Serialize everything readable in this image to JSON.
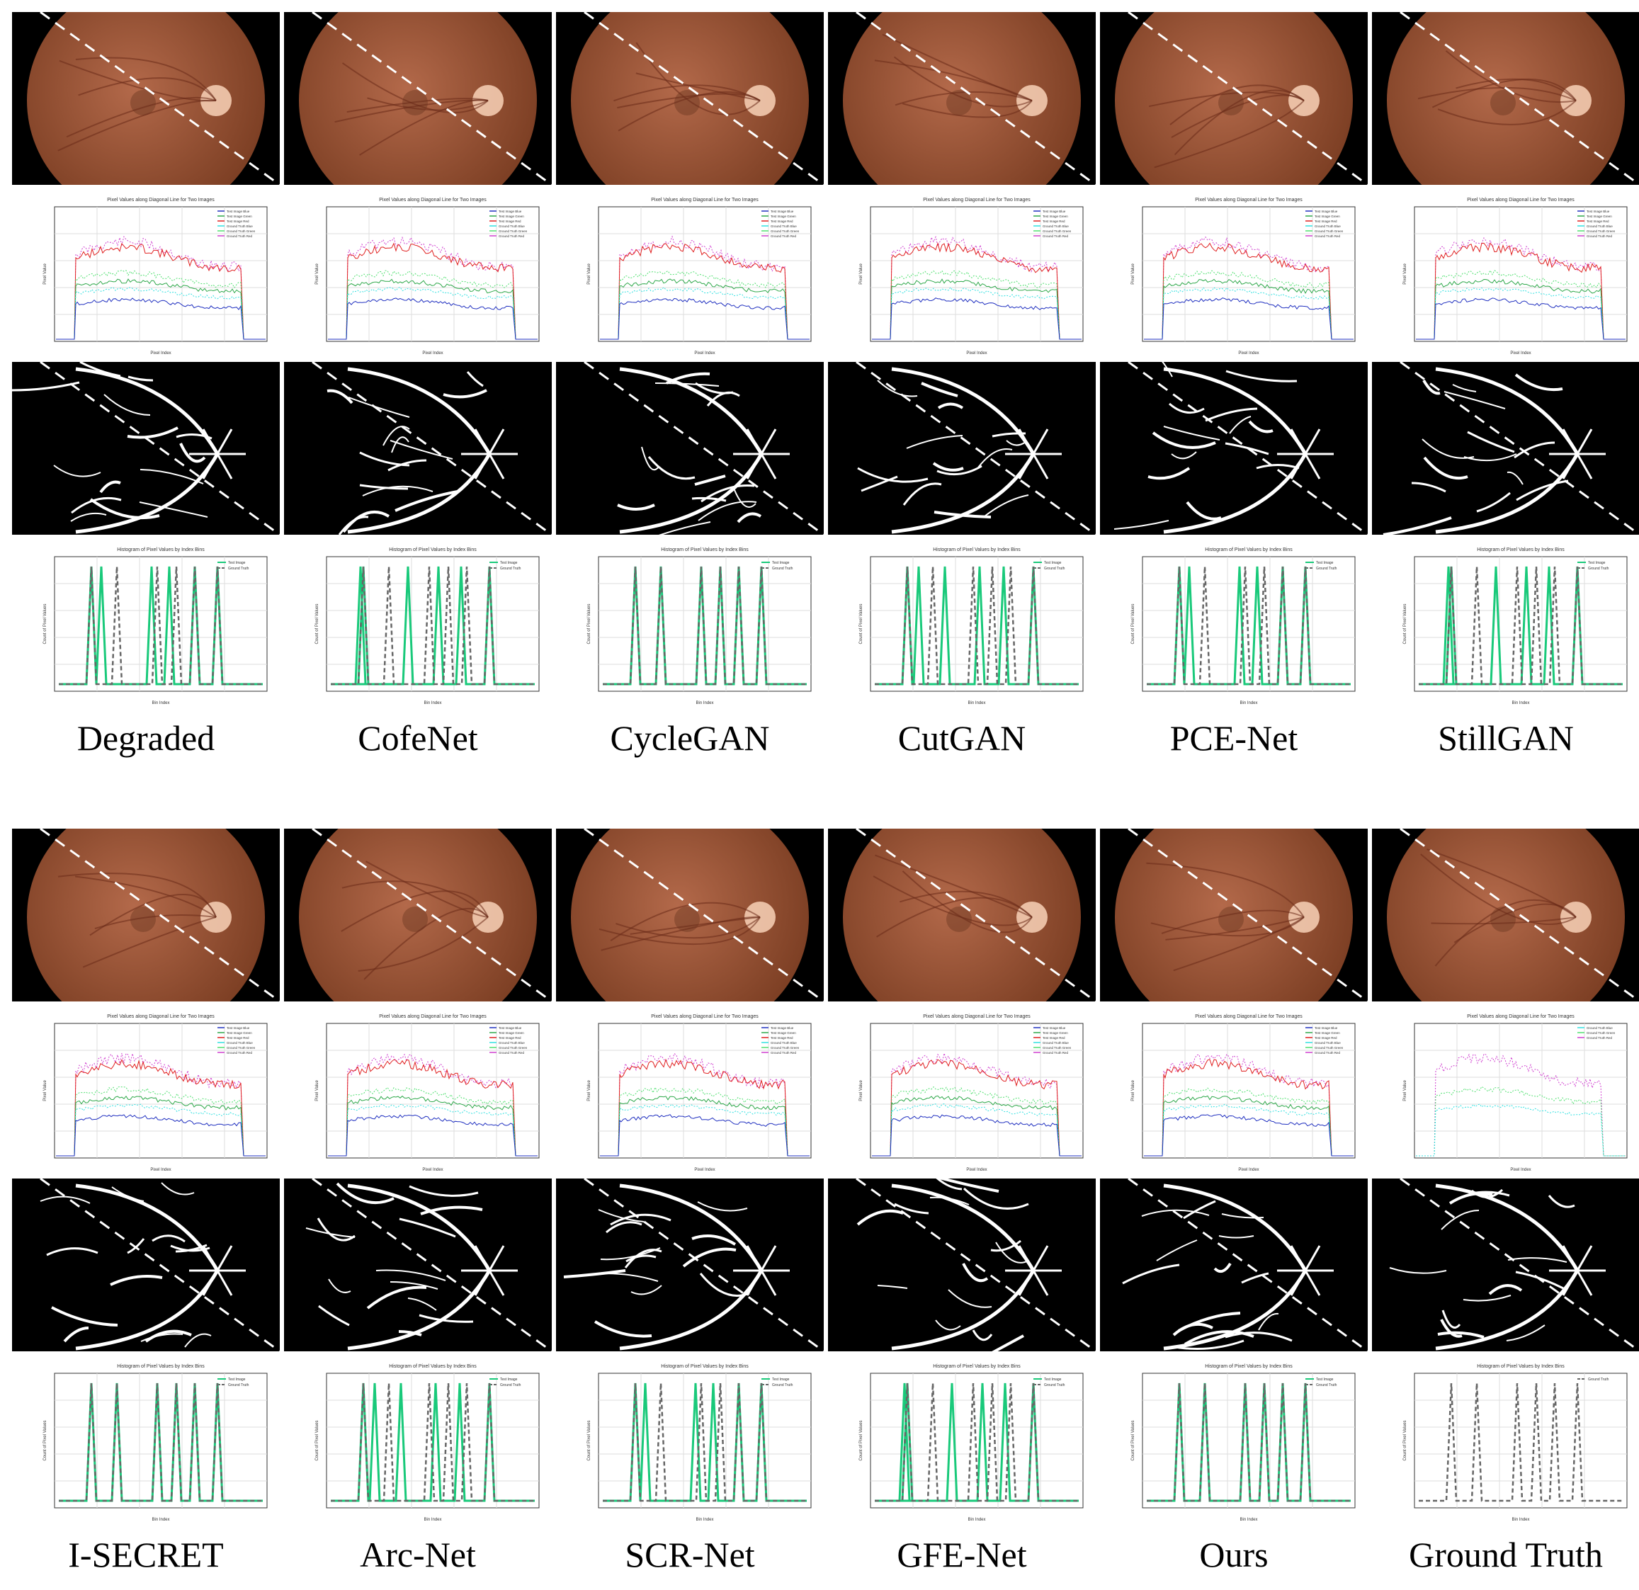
{
  "figure": {
    "rows": [
      {
        "methods": [
          "Degraded",
          "CofeNet",
          "CycleGAN",
          "CutGAN",
          "PCE-Net",
          "StillGAN"
        ]
      },
      {
        "methods": [
          "I-SECRET",
          "Arc-Net",
          "SCR-Net",
          "GFE-Net",
          "Ours",
          "Ground Truth"
        ]
      }
    ],
    "plot_titles": {
      "profile": "Pixel Values along Diagonal Line for Two Images",
      "histogram": "Histogram of Pixel Values by Index Bins"
    },
    "profile_axes": {
      "xlabel": "Pixel Index",
      "ylabel": "Pixel Value"
    },
    "histogram_axes": {
      "xlabel": "Bin Index",
      "ylabel": "Count of Pixel Values"
    },
    "profile_legend": [
      "Test Image Blue",
      "Test Image Green",
      "Test Image Red",
      "Ground Truth Blue",
      "Ground Truth Green",
      "Ground Truth Red"
    ],
    "histogram_legend": [
      "Test Image",
      "Ground Truth"
    ],
    "colors": {
      "fundus_bg": "#000000",
      "fundus_edge": "#7a3d22",
      "fundus_mid": "#b3694a",
      "optic_disc": "#f3cbb0",
      "vessel": "#ffffff",
      "diagonal": "#ffffff",
      "test_hist": "#19c97a",
      "gt_hist": "#666666",
      "red": "#e02020",
      "green": "#2ea84a",
      "blue": "#2030c0",
      "magenta": "#d040d0",
      "lightgreen": "#50e070",
      "cyan": "#30e0e0"
    }
  }
}
